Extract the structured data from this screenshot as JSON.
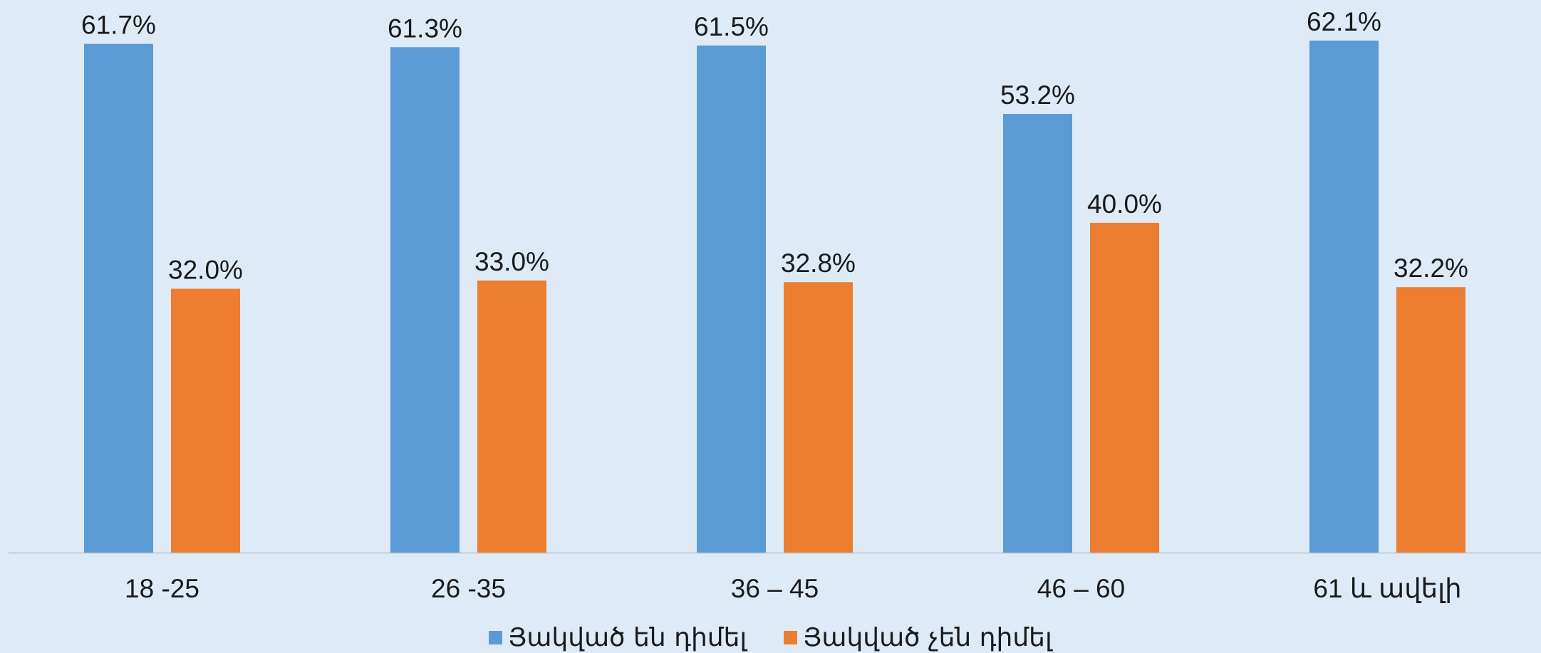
{
  "chart_data": {
    "type": "bar",
    "title": "",
    "xlabel": "",
    "ylabel": "",
    "categories": [
      "18 -25",
      "26 -35",
      "36 – 45",
      "46 – 60",
      "61 և ավելի"
    ],
    "series": [
      {
        "name": "Յակված են դիմել",
        "values": [
          61.7,
          61.3,
          61.5,
          53.2,
          62.1
        ],
        "labels": [
          "61.7%",
          "61.3%",
          "61.5%",
          "53.2%",
          "62.1%"
        ],
        "color": "#5b9bd5"
      },
      {
        "name": "Յակված չեն դիմել",
        "values": [
          32.0,
          33.0,
          32.8,
          40.0,
          32.2
        ],
        "labels": [
          "32.0%",
          "33.0%",
          "32.8%",
          "40.0%",
          "32.2%"
        ],
        "color": "#ed7d31"
      }
    ],
    "ylim": [
      0,
      62.1
    ],
    "grid": false,
    "legend": "bottom"
  }
}
